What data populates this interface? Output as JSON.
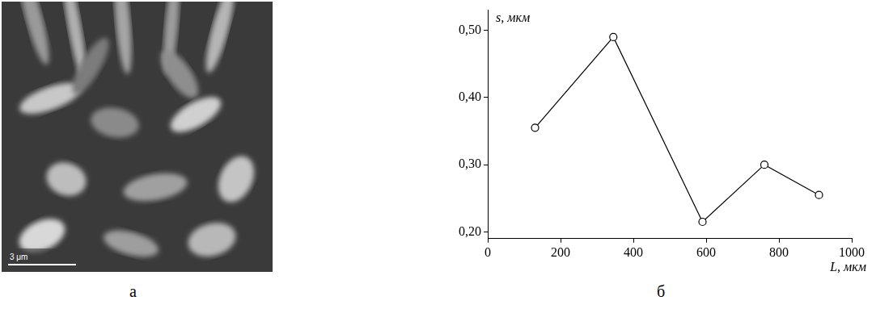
{
  "image_panel": {
    "letter": "а",
    "scale_bar_label": "3 μm"
  },
  "chart_panel_letter": "б",
  "chart_data": {
    "type": "line",
    "x_label": "L, мкм",
    "y_label": "s, мкм",
    "x": [
      130,
      345,
      590,
      760,
      910
    ],
    "values": [
      0.355,
      0.49,
      0.215,
      0.3,
      0.255
    ],
    "color": "#000000",
    "marker": "circle",
    "xlim": [
      0,
      1000
    ],
    "xticks": [
      0,
      200,
      400,
      600,
      800,
      1000
    ],
    "ylim": [
      0.19,
      0.53
    ],
    "yticks": [
      {
        "value": 0.2,
        "label": "0,20"
      },
      {
        "value": 0.3,
        "label": "0,30"
      },
      {
        "value": 0.4,
        "label": "0,40"
      },
      {
        "value": 0.5,
        "label": "0,50"
      }
    ],
    "grid": false
  }
}
